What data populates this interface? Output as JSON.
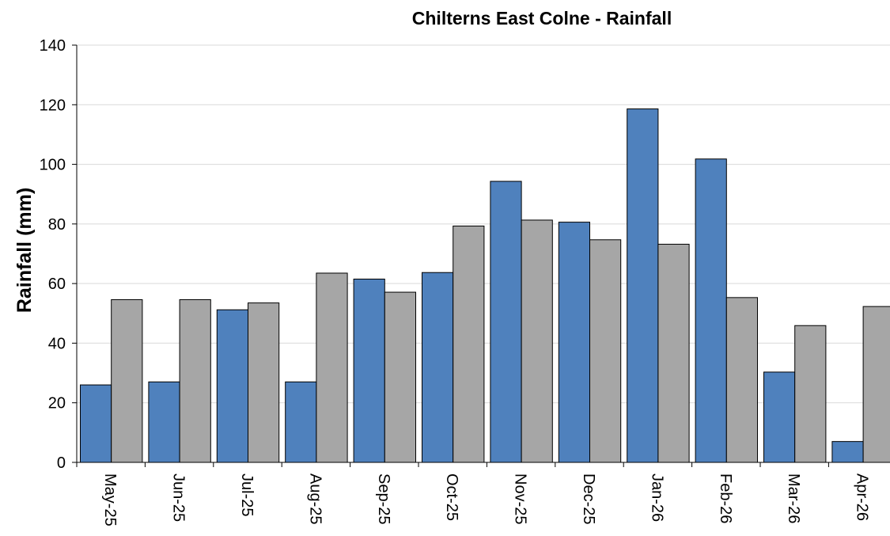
{
  "chart_data": {
    "type": "bar",
    "title": "Chilterns East Colne - Rainfall",
    "xlabel": "",
    "ylabel": "Rainfall (mm)",
    "ylim": [
      0,
      140
    ],
    "yticks": [
      0,
      20,
      40,
      60,
      80,
      100,
      120,
      140
    ],
    "grid": true,
    "legend": "none",
    "categories": [
      "May-25",
      "Jun-25",
      "Jul-25",
      "Aug-25",
      "Sep-25",
      "Oct-25",
      "Nov-25",
      "Dec-25",
      "Jan-26",
      "Feb-26",
      "Mar-26",
      "Apr-26"
    ],
    "series": [
      {
        "color": "#4f81bd",
        "values": [
          26,
          27,
          51.2,
          27,
          61.5,
          63.7,
          94.3,
          80.6,
          118.6,
          101.8,
          30.3,
          7
        ]
      },
      {
        "color": "#a6a6a6",
        "values": [
          54.6,
          54.6,
          53.5,
          63.5,
          57.1,
          79.3,
          81.3,
          74.7,
          73.2,
          55.3,
          45.9,
          52.3
        ]
      }
    ]
  }
}
